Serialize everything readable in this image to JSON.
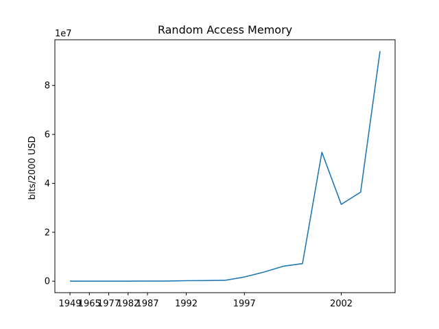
{
  "chart_data": {
    "type": "line",
    "title": "Random Access Memory",
    "xlabel": "",
    "ylabel": "bits/2000 USD",
    "y_offset_text": "1e7",
    "x_tick_labels": [
      "1949",
      "1965",
      "1977",
      "1982",
      "1987",
      "1992",
      "1997",
      "2002"
    ],
    "y_ticks": [
      0,
      20000000,
      40000000,
      60000000,
      80000000
    ],
    "y_tick_labels": [
      "0",
      "2",
      "4",
      "6",
      "8"
    ],
    "ylim": [
      -4700000,
      98700000
    ],
    "series": [
      {
        "color": "#1f77b4",
        "points": [
          {
            "x": "1949",
            "y": 0
          },
          {
            "x": "1965",
            "y": 0
          },
          {
            "x": "1977",
            "y": 0
          },
          {
            "x": "1982",
            "y": 0
          },
          {
            "x": "1987",
            "y": 50000
          },
          {
            "x": "1989",
            "y": 50000
          },
          {
            "x": "1992",
            "y": 200000
          },
          {
            "x": "1994",
            "y": 250000
          },
          {
            "x": "1996",
            "y": 350000
          },
          {
            "x": "1997",
            "y": 1700000
          },
          {
            "x": "1998",
            "y": 3700000
          },
          {
            "x": "1999",
            "y": 6100000
          },
          {
            "x": "2000",
            "y": 7200000
          },
          {
            "x": "2001",
            "y": 52700000
          },
          {
            "x": "2002",
            "y": 31400000
          },
          {
            "x": "2003",
            "y": 36400000
          },
          {
            "x": "2004",
            "y": 94000000
          }
        ]
      }
    ],
    "grid": false,
    "legend": "none"
  }
}
